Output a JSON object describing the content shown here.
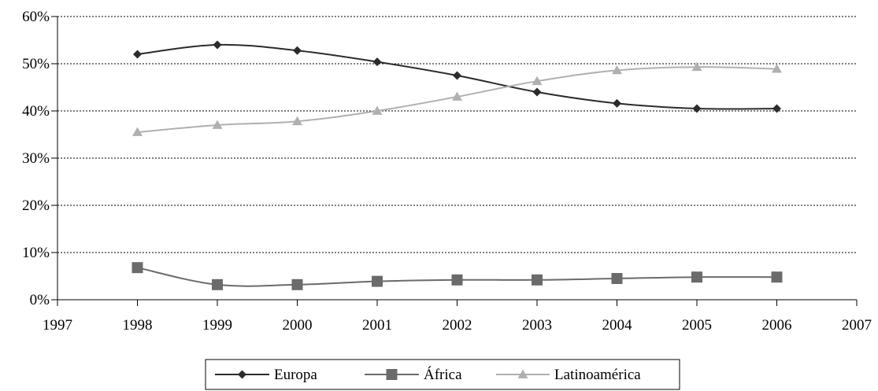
{
  "chart_data": {
    "type": "line",
    "x": [
      1998,
      1999,
      2000,
      2001,
      2002,
      2003,
      2004,
      2005,
      2006
    ],
    "xlim": [
      1997,
      2007
    ],
    "xticks": [
      "1997",
      "1998",
      "1999",
      "2000",
      "2001",
      "2002",
      "2003",
      "2004",
      "2005",
      "2006",
      "2007"
    ],
    "ylim": [
      0,
      60
    ],
    "yticks": [
      "0%",
      "10%",
      "20%",
      "30%",
      "40%",
      "50%",
      "60%"
    ],
    "grid": "horizontal dotted",
    "legend_position": "bottom",
    "series": [
      {
        "name": "Europa",
        "marker": "diamond",
        "color": "#2b2b2b",
        "values": [
          52,
          54,
          52.8,
          50.4,
          47.5,
          44,
          41.6,
          40.5,
          40.5
        ]
      },
      {
        "name": "África",
        "marker": "square",
        "color": "#6b6b6b",
        "values": [
          6.8,
          3.2,
          3.2,
          3.9,
          4.2,
          4.2,
          4.5,
          4.8,
          4.8
        ]
      },
      {
        "name": "Latinoamérica",
        "marker": "triangle",
        "color": "#b0b0b0",
        "values": [
          35.5,
          37,
          37.8,
          40,
          43,
          46.3,
          48.6,
          49.3,
          48.9
        ]
      }
    ]
  }
}
